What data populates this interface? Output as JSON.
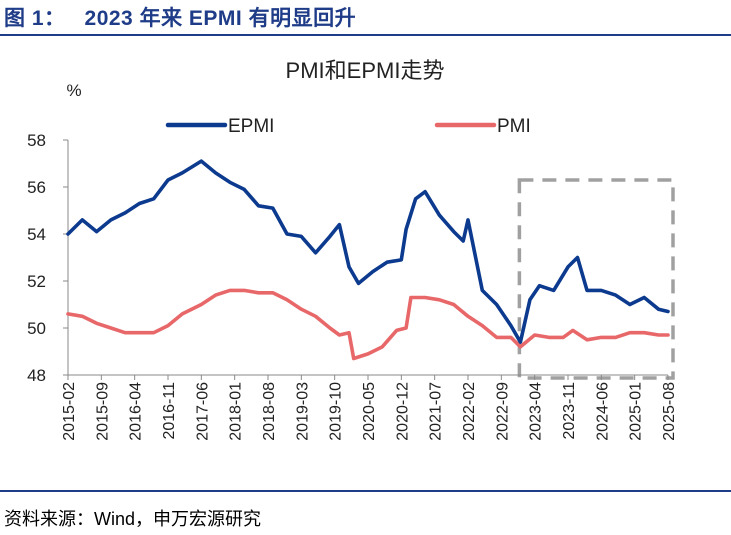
{
  "figure_title": "图 1：   2023 年来 EPMI 有明显回升",
  "source": "资料来源：Wind，申万宏源研究",
  "colors": {
    "brand": "#1f3c88",
    "epmi": "#0c3a8e",
    "pmi": "#e8686a",
    "box": "#a0a0a0"
  },
  "chart_data": {
    "type": "line",
    "title": "PMI和EPMI走势",
    "ylabel": "%",
    "xlabel": "",
    "ylim": [
      48,
      58
    ],
    "yticks": [
      48,
      50,
      52,
      54,
      56,
      58
    ],
    "legend": "top",
    "grid": false,
    "highlight_box": {
      "from": "2023-01",
      "to": "2025-08",
      "style": "dashed"
    },
    "x_tick_labels": [
      "2015-02",
      "2015-09",
      "2016-04",
      "2016-11",
      "2017-06",
      "2018-01",
      "2018-08",
      "2019-03",
      "2019-10",
      "2020-05",
      "2020-12",
      "2021-07",
      "2022-02",
      "2022-09",
      "2023-04",
      "2023-11",
      "2024-06",
      "2025-01",
      "2025-08"
    ],
    "series": [
      {
        "name": "EPMI",
        "points": [
          [
            "2015-02",
            54.0
          ],
          [
            "2015-05",
            54.6
          ],
          [
            "2015-08",
            54.1
          ],
          [
            "2015-11",
            54.6
          ],
          [
            "2016-02",
            54.9
          ],
          [
            "2016-05",
            55.3
          ],
          [
            "2016-08",
            55.5
          ],
          [
            "2016-11",
            56.3
          ],
          [
            "2017-02",
            56.6
          ],
          [
            "2017-06",
            57.1
          ],
          [
            "2017-09",
            56.6
          ],
          [
            "2017-12",
            56.2
          ],
          [
            "2018-03",
            55.9
          ],
          [
            "2018-06",
            55.2
          ],
          [
            "2018-09",
            55.1
          ],
          [
            "2018-12",
            54.0
          ],
          [
            "2019-03",
            53.9
          ],
          [
            "2019-06",
            53.2
          ],
          [
            "2019-09",
            53.9
          ],
          [
            "2019-11",
            54.4
          ],
          [
            "2020-01",
            52.6
          ],
          [
            "2020-03",
            51.9
          ],
          [
            "2020-06",
            52.4
          ],
          [
            "2020-09",
            52.8
          ],
          [
            "2020-12",
            52.9
          ],
          [
            "2021-01",
            54.2
          ],
          [
            "2021-03",
            55.5
          ],
          [
            "2021-05",
            55.8
          ],
          [
            "2021-08",
            54.8
          ],
          [
            "2021-11",
            54.1
          ],
          [
            "2022-01",
            53.7
          ],
          [
            "2022-02",
            54.6
          ],
          [
            "2022-05",
            51.6
          ],
          [
            "2022-08",
            51.0
          ],
          [
            "2022-11",
            50.1
          ],
          [
            "2023-01",
            49.4
          ],
          [
            "2023-03",
            51.2
          ],
          [
            "2023-05",
            51.8
          ],
          [
            "2023-08",
            51.6
          ],
          [
            "2023-11",
            52.6
          ],
          [
            "2024-01",
            53.0
          ],
          [
            "2024-03",
            51.6
          ],
          [
            "2024-06",
            51.6
          ],
          [
            "2024-09",
            51.4
          ],
          [
            "2024-12",
            51.0
          ],
          [
            "2025-03",
            51.3
          ],
          [
            "2025-06",
            50.8
          ],
          [
            "2025-08",
            50.7
          ]
        ]
      },
      {
        "name": "PMI",
        "points": [
          [
            "2015-02",
            50.6
          ],
          [
            "2015-05",
            50.5
          ],
          [
            "2015-08",
            50.2
          ],
          [
            "2015-11",
            50.0
          ],
          [
            "2016-02",
            49.8
          ],
          [
            "2016-05",
            49.8
          ],
          [
            "2016-08",
            49.8
          ],
          [
            "2016-11",
            50.1
          ],
          [
            "2017-02",
            50.6
          ],
          [
            "2017-06",
            51.0
          ],
          [
            "2017-09",
            51.4
          ],
          [
            "2017-12",
            51.6
          ],
          [
            "2018-03",
            51.6
          ],
          [
            "2018-06",
            51.5
          ],
          [
            "2018-09",
            51.5
          ],
          [
            "2018-12",
            51.2
          ],
          [
            "2019-03",
            50.8
          ],
          [
            "2019-06",
            50.5
          ],
          [
            "2019-09",
            50.0
          ],
          [
            "2019-11",
            49.7
          ],
          [
            "2020-01",
            49.8
          ],
          [
            "2020-02",
            48.7
          ],
          [
            "2020-05",
            48.9
          ],
          [
            "2020-08",
            49.2
          ],
          [
            "2020-11",
            49.9
          ],
          [
            "2021-01",
            50.0
          ],
          [
            "2021-02",
            51.3
          ],
          [
            "2021-05",
            51.3
          ],
          [
            "2021-08",
            51.2
          ],
          [
            "2021-11",
            51.0
          ],
          [
            "2022-02",
            50.5
          ],
          [
            "2022-05",
            50.1
          ],
          [
            "2022-08",
            49.6
          ],
          [
            "2022-11",
            49.6
          ],
          [
            "2023-01",
            49.2
          ],
          [
            "2023-04",
            49.7
          ],
          [
            "2023-07",
            49.6
          ],
          [
            "2023-10",
            49.6
          ],
          [
            "2023-12",
            49.9
          ],
          [
            "2024-03",
            49.5
          ],
          [
            "2024-06",
            49.6
          ],
          [
            "2024-09",
            49.6
          ],
          [
            "2024-12",
            49.8
          ],
          [
            "2025-03",
            49.8
          ],
          [
            "2025-06",
            49.7
          ],
          [
            "2025-08",
            49.7
          ]
        ]
      }
    ]
  }
}
